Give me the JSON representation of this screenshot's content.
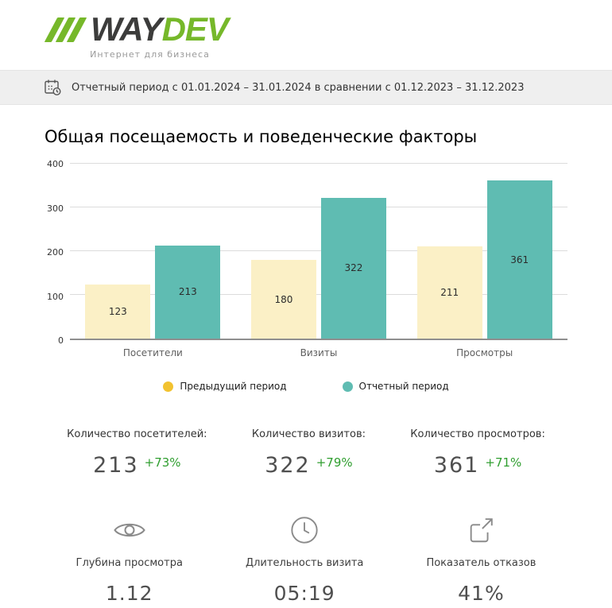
{
  "logo": {
    "way": "WAY",
    "dev": "DEV",
    "tagline": "Интернет для бизнеса"
  },
  "period_bar": {
    "text": "Отчетный период с 01.01.2024 – 31.01.2024 в сравнении с 01.12.2023 – 31.12.2023"
  },
  "title": "Общая посещаемость и поведенческие факторы",
  "chart_data": {
    "type": "bar",
    "categories": [
      "Посетители",
      "Визиты",
      "Просмотры"
    ],
    "series": [
      {
        "name": "Предыдущий период",
        "values": [
          123,
          180,
          211
        ],
        "color": "#FBF0C6",
        "legend_color": "#F2C230"
      },
      {
        "name": "Отчетный период",
        "values": [
          213,
          322,
          361
        ],
        "color": "#5FBCB2",
        "legend_color": "#5FBCB2"
      }
    ],
    "ylim": [
      0,
      400
    ],
    "yticks": [
      0,
      100,
      200,
      300,
      400
    ],
    "grid": true,
    "legend_position": "bottom",
    "title": "Общая посещаемость и поведенческие факторы",
    "xlabel": "",
    "ylabel": ""
  },
  "stats": [
    {
      "label": "Количество посетителей:",
      "value": "213",
      "delta": "+73%"
    },
    {
      "label": "Количество визитов:",
      "value": "322",
      "delta": "+79%"
    },
    {
      "label": "Количество просмотров:",
      "value": "361",
      "delta": "+71%"
    }
  ],
  "metrics": [
    {
      "icon": "eye-icon",
      "label": "Глубина просмотра",
      "value": "1.12"
    },
    {
      "icon": "clock-icon",
      "label": "Длительность визита",
      "value": "05:19"
    },
    {
      "icon": "share-icon",
      "label": "Показатель отказов",
      "value": "41%"
    }
  ],
  "colors": {
    "logo_green": "#76B82A",
    "logo_dark": "#3C3C3B",
    "green_delta": "#2f9e2f",
    "bar_prev": "#FBF0C6",
    "bar_curr": "#5FBCB2",
    "legend_yellow": "#F2C230",
    "period_bar_bg": "#efefef"
  }
}
